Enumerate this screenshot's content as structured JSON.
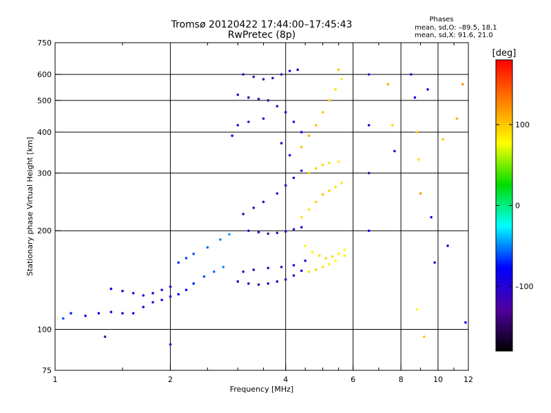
{
  "chart_data": {
    "type": "scatter",
    "title_line1": "Tromsø 20120422 17:44:00–17:45:43",
    "title_line2": "RwPretec (8p)",
    "stats": {
      "heading": "Phases",
      "line1": "mean, sd,O: –89.5, 18.1",
      "line2": "mean, sd,X:  91.6, 21.0"
    },
    "xlabel": "Frequency [MHz]",
    "ylabel": "Stationary phase Virtual Height [km]",
    "x_scale": "log",
    "y_scale": "log",
    "xlim": [
      1,
      12
    ],
    "ylim": [
      75,
      750
    ],
    "x_ticks": [
      1,
      2,
      4,
      6,
      8,
      10,
      12
    ],
    "x_tick_labels": [
      "1",
      "2",
      "4",
      "6",
      "8",
      "10",
      "12"
    ],
    "x_minor_ticks": [
      1.5,
      2.5,
      3,
      3.5,
      4.5,
      5,
      5.5,
      7,
      9,
      11
    ],
    "y_ticks": [
      75,
      100,
      200,
      300,
      400,
      500,
      600,
      750
    ],
    "y_tick_labels": [
      "75",
      "100",
      "200",
      "300",
      "400",
      "500",
      "600",
      "750"
    ],
    "grid": true,
    "colorbar": {
      "label": "[deg]",
      "range": [
        -180,
        180
      ],
      "ticks": [
        100,
        0,
        -100
      ],
      "tick_labels": [
        "100",
        "0",
        "–100"
      ],
      "colors": [
        "#ff0000",
        "#ff8000",
        "#ffff00",
        "#00dd00",
        "#00ffff",
        "#0000ff",
        "#5000a0",
        "#000000"
      ]
    },
    "series": [
      {
        "points": [
          [
            1.05,
            108,
            -60
          ],
          [
            1.1,
            112,
            -70
          ],
          [
            1.2,
            110,
            -80
          ],
          [
            1.3,
            112,
            -85
          ],
          [
            1.4,
            113,
            -90
          ],
          [
            1.5,
            112,
            -95
          ],
          [
            1.6,
            112,
            -90
          ],
          [
            1.7,
            117,
            -100
          ],
          [
            1.8,
            121,
            -95
          ],
          [
            1.9,
            123,
            -105
          ],
          [
            2.0,
            126,
            -100
          ],
          [
            2.1,
            128,
            -90
          ],
          [
            2.2,
            132,
            -80
          ],
          [
            2.3,
            138,
            -70
          ],
          [
            2.45,
            145,
            -60
          ],
          [
            2.6,
            150,
            -55
          ],
          [
            2.75,
            155,
            -50
          ],
          [
            1.4,
            133,
            -85
          ],
          [
            1.5,
            131,
            -90
          ],
          [
            1.6,
            129,
            -95
          ],
          [
            1.7,
            127,
            -95
          ],
          [
            1.8,
            129,
            -100
          ],
          [
            1.9,
            132,
            -95
          ],
          [
            2.0,
            135,
            -90
          ],
          [
            2.1,
            160,
            -70
          ],
          [
            2.2,
            165,
            -65
          ],
          [
            2.3,
            170,
            -60
          ],
          [
            2.5,
            178,
            -55
          ],
          [
            2.7,
            188,
            -50
          ],
          [
            2.85,
            195,
            -45
          ],
          [
            3.0,
            140,
            -105
          ],
          [
            3.2,
            138,
            -110
          ],
          [
            3.4,
            137,
            -115
          ],
          [
            3.6,
            138,
            -115
          ],
          [
            3.8,
            140,
            -110
          ],
          [
            4.0,
            142,
            -110
          ],
          [
            4.2,
            146,
            -105
          ],
          [
            4.4,
            151,
            -100
          ],
          [
            3.1,
            150,
            -105
          ],
          [
            3.3,
            152,
            -110
          ],
          [
            3.6,
            154,
            -115
          ],
          [
            3.9,
            155,
            -110
          ],
          [
            4.2,
            157,
            -105
          ],
          [
            4.5,
            162,
            -100
          ],
          [
            3.2,
            200,
            -110
          ],
          [
            3.4,
            198,
            -115
          ],
          [
            3.6,
            196,
            -115
          ],
          [
            3.8,
            197,
            -110
          ],
          [
            4.0,
            199,
            -105
          ],
          [
            4.2,
            202,
            -100
          ],
          [
            4.4,
            205,
            -95
          ],
          [
            3.1,
            225,
            -115
          ],
          [
            3.3,
            235,
            -120
          ],
          [
            3.5,
            245,
            -115
          ],
          [
            3.8,
            260,
            -110
          ],
          [
            4.0,
            275,
            -110
          ],
          [
            4.2,
            290,
            -105
          ],
          [
            4.4,
            305,
            -100
          ],
          [
            3.1,
            600,
            -110
          ],
          [
            3.3,
            590,
            -115
          ],
          [
            3.5,
            580,
            -120
          ],
          [
            3.7,
            585,
            -115
          ],
          [
            3.9,
            600,
            -110
          ],
          [
            4.1,
            615,
            -105
          ],
          [
            4.3,
            620,
            -100
          ],
          [
            3.0,
            520,
            -115
          ],
          [
            3.2,
            510,
            -120
          ],
          [
            3.4,
            505,
            -115
          ],
          [
            3.6,
            500,
            -115
          ],
          [
            3.8,
            480,
            -110
          ],
          [
            4.0,
            460,
            -105
          ],
          [
            4.2,
            430,
            -100
          ],
          [
            4.4,
            400,
            -95
          ],
          [
            3.0,
            420,
            -115
          ],
          [
            3.2,
            430,
            -115
          ],
          [
            3.5,
            440,
            -110
          ],
          [
            3.9,
            370,
            -105
          ],
          [
            4.1,
            340,
            -100
          ],
          [
            2.9,
            390,
            -95
          ],
          [
            4.5,
            180,
            80
          ],
          [
            4.7,
            172,
            85
          ],
          [
            4.9,
            168,
            90
          ],
          [
            5.1,
            165,
            95
          ],
          [
            5.3,
            167,
            90
          ],
          [
            5.5,
            170,
            85
          ],
          [
            5.7,
            175,
            80
          ],
          [
            4.6,
            150,
            90
          ],
          [
            4.8,
            152,
            95
          ],
          [
            5.0,
            155,
            90
          ],
          [
            5.2,
            158,
            85
          ],
          [
            5.4,
            162,
            80
          ],
          [
            5.7,
            168,
            85
          ],
          [
            4.4,
            220,
            85
          ],
          [
            4.6,
            232,
            90
          ],
          [
            4.8,
            245,
            95
          ],
          [
            5.0,
            258,
            100
          ],
          [
            5.2,
            265,
            95
          ],
          [
            5.4,
            272,
            90
          ],
          [
            5.6,
            280,
            85
          ],
          [
            4.6,
            300,
            95
          ],
          [
            4.8,
            310,
            100
          ],
          [
            5.0,
            318,
            95
          ],
          [
            5.2,
            322,
            90
          ],
          [
            5.5,
            325,
            85
          ],
          [
            4.4,
            360,
            100
          ],
          [
            4.6,
            390,
            110
          ],
          [
            4.8,
            420,
            105
          ],
          [
            5.0,
            460,
            100
          ],
          [
            5.2,
            500,
            95
          ],
          [
            5.4,
            540,
            90
          ],
          [
            5.6,
            580,
            85
          ],
          [
            5.5,
            620,
            100
          ],
          [
            6.6,
            600,
            -110
          ],
          [
            6.6,
            420,
            -100
          ],
          [
            6.6,
            300,
            -120
          ],
          [
            6.6,
            200,
            -90
          ],
          [
            7.4,
            560,
            110
          ],
          [
            7.6,
            420,
            90
          ],
          [
            7.7,
            350,
            -100
          ],
          [
            8.5,
            600,
            -110
          ],
          [
            8.7,
            510,
            -100
          ],
          [
            8.8,
            400,
            100
          ],
          [
            8.9,
            330,
            90
          ],
          [
            9.0,
            260,
            120
          ],
          [
            9.4,
            540,
            -100
          ],
          [
            9.6,
            220,
            -90
          ],
          [
            9.8,
            160,
            -110
          ],
          [
            10.3,
            380,
            100
          ],
          [
            10.6,
            180,
            -90
          ],
          [
            11.2,
            440,
            110
          ],
          [
            11.6,
            560,
            120
          ],
          [
            11.8,
            105,
            -100
          ],
          [
            8.8,
            115,
            80
          ],
          [
            9.2,
            95,
            100
          ],
          [
            1.35,
            95,
            -120
          ],
          [
            2.0,
            90,
            -110
          ]
        ]
      }
    ]
  }
}
